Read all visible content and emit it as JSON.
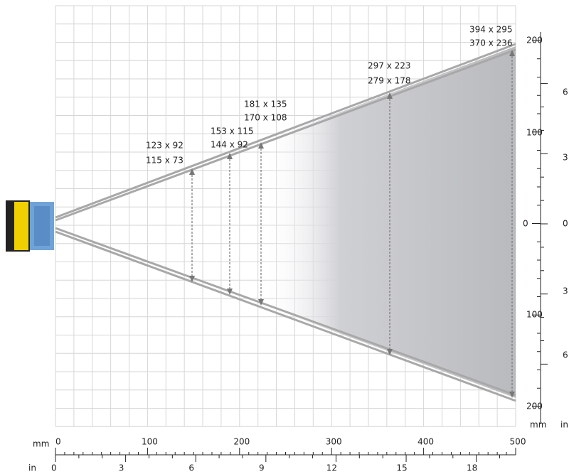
{
  "fields": [
    [
      "123 x 92",
      "115 x 73"
    ],
    [
      "153 x 115",
      "144 x 92"
    ],
    [
      "181 x 135",
      "170 x 108"
    ],
    [
      "297 x 223",
      "279 x 178"
    ],
    [
      "394 x 295",
      "370 x 236"
    ]
  ],
  "bottom_axis": {
    "mm_unit": "mm",
    "mm_ticks": [
      "0",
      "100",
      "200",
      "300",
      "400",
      "500"
    ],
    "in_unit": "in",
    "in_ticks": [
      "0",
      "3",
      "6",
      "9",
      "12",
      "15",
      "18"
    ]
  },
  "right_axis": {
    "mm_ticks": [
      "200",
      "100",
      "0",
      "100",
      "200"
    ],
    "in_ticks": [
      "6",
      "3",
      "0",
      "3",
      "6"
    ],
    "mm_unit": "mm",
    "in_unit": "in"
  }
}
